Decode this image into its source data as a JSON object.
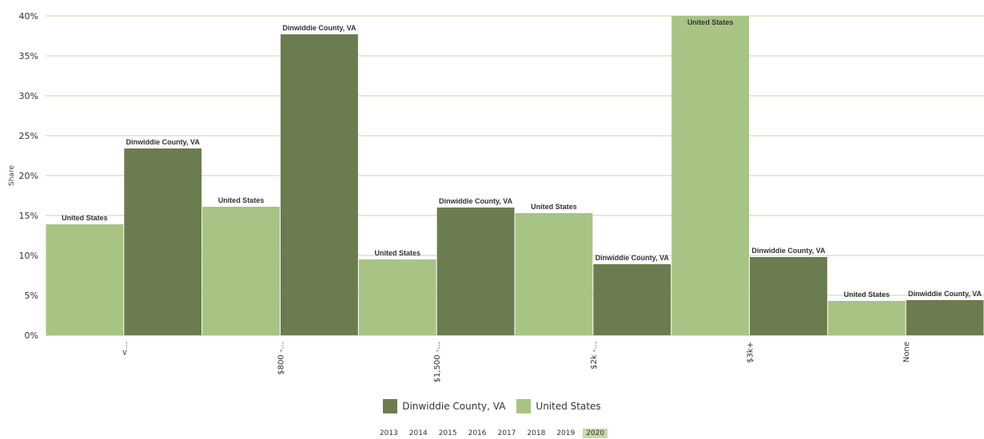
{
  "chart_data": {
    "type": "bar",
    "ylabel": "Share",
    "xlabel": "",
    "ylim": [
      0,
      40
    ],
    "ytick_values": [
      0,
      5,
      10,
      15,
      20,
      25,
      30,
      35,
      40
    ],
    "ytick_labels": [
      "0%",
      "5%",
      "10%",
      "15%",
      "20%",
      "25%",
      "30%",
      "35%",
      "40%"
    ],
    "grid": true,
    "legend_position": "bottom",
    "categories": [
      "<...",
      "$800 -...",
      "$1,500 -...",
      "$2k -...",
      "$3k+",
      "None"
    ],
    "series": [
      {
        "name": "United States",
        "color": "#a8c484",
        "values": [
          13.9,
          16.1,
          9.5,
          15.3,
          41.0,
          4.3
        ]
      },
      {
        "name": "Dinwiddie County, VA",
        "color": "#6b7c4e",
        "values": [
          23.4,
          37.7,
          16.0,
          8.9,
          9.8,
          4.4
        ]
      }
    ]
  },
  "legend": {
    "items": [
      {
        "label": "Dinwiddie County, VA",
        "color": "#6b7c4e"
      },
      {
        "label": "United States",
        "color": "#a8c484"
      }
    ]
  },
  "years": {
    "items": [
      "2013",
      "2014",
      "2015",
      "2016",
      "2017",
      "2018",
      "2019",
      "2020"
    ],
    "selected": "2020"
  }
}
